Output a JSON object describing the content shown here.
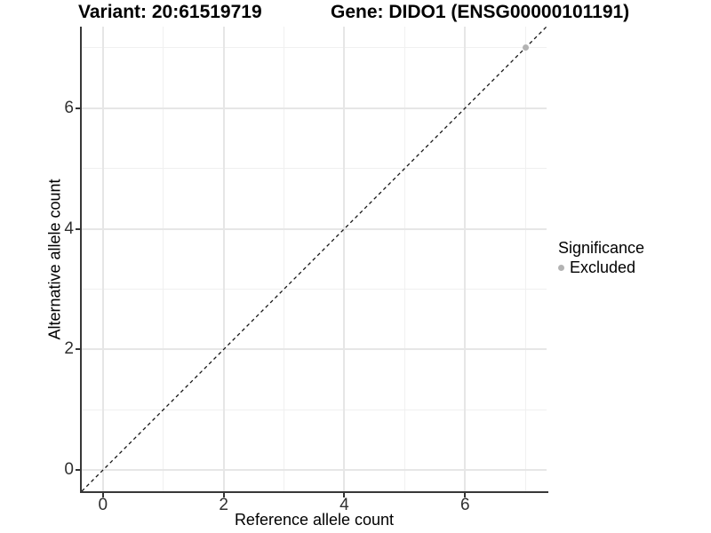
{
  "header": {
    "title_left": "Variant: 20:61519719",
    "title_right": "Gene: DIDO1 (ENSG00000101191)"
  },
  "legend": {
    "title": "Significance",
    "items": [
      {
        "label": "Excluded",
        "color": "#b3b3b3"
      }
    ]
  },
  "chart_data": {
    "type": "scatter",
    "title": "Variant: 20:61519719 — Gene: DIDO1 (ENSG00000101191)",
    "xlabel": "Reference allele count",
    "ylabel": "Alternative allele count",
    "xlim": [
      -0.35,
      7.35
    ],
    "ylim": [
      -0.35,
      7.35
    ],
    "x_ticks": [
      0,
      2,
      4,
      6
    ],
    "y_ticks": [
      0,
      2,
      4,
      6
    ],
    "x_minor_ticks": [
      1,
      3,
      5,
      7
    ],
    "y_minor_ticks": [
      1,
      3,
      5,
      7
    ],
    "grid": true,
    "legend_position": "right",
    "reference_line": {
      "kind": "abline",
      "slope": 1,
      "intercept": 0,
      "style": "dashed",
      "color": "#151515"
    },
    "series": [
      {
        "name": "Excluded",
        "color": "#b3b3b3",
        "points": [
          {
            "x": 7,
            "y": 7
          }
        ]
      }
    ]
  }
}
